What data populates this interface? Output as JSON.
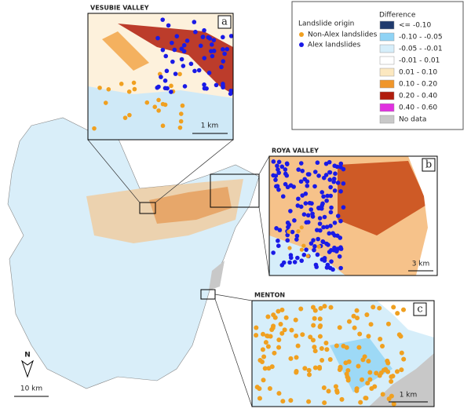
{
  "insets": [
    {
      "title": "VESUBIE VALLEY",
      "letter": "a",
      "scale": "1 km"
    },
    {
      "title": "ROYA VALLEY",
      "letter": "b",
      "scale": "3 km"
    },
    {
      "title": "MENTON",
      "letter": "c",
      "scale": "1 km"
    }
  ],
  "main_scale": "10 km",
  "north": "N",
  "legend": {
    "origin_title": "Landslide origin",
    "origin_items": [
      {
        "label": "Non-Alex landslides",
        "color": "#f0a020"
      },
      {
        "label": "Alex landslides",
        "color": "#1a1ae6"
      }
    ],
    "difference_title": "Difference",
    "difference_items": [
      {
        "label": "<= -0.10",
        "color": "#1f3a6e"
      },
      {
        "label": "-0.10 - -0.05",
        "color": "#8fd3f5"
      },
      {
        "label": "-0.05 - -0.01",
        "color": "#d6eefa"
      },
      {
        "label": "-0.01 - 0.01",
        "color": "#ffffff"
      },
      {
        "label": "0.01 - 0.10",
        "color": "#fce8c0"
      },
      {
        "label": "0.10 - 0.20",
        "color": "#f0962a"
      },
      {
        "label": "0.20 - 0.40",
        "color": "#b01c0c"
      },
      {
        "label": "0.40 - 0.60",
        "color": "#e030e0"
      },
      {
        "label": "No data",
        "color": "#c8c8c8"
      }
    ]
  }
}
